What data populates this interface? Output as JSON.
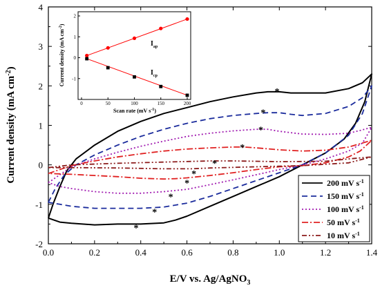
{
  "chart_data": {
    "type": "line",
    "xlabel_main": "E/V vs. Ag/AgNO",
    "xlabel_sub": "3",
    "ylabel_main": "Current density (mA cm",
    "ylabel_sup": "-2",
    "ylabel_end": ")",
    "xlim": [
      0.0,
      1.4
    ],
    "ylim": [
      -2,
      4
    ],
    "x_ticks": [
      "0.0",
      "0.2",
      "0.4",
      "0.6",
      "0.8",
      "1.0",
      "1.2",
      "1.4"
    ],
    "y_ticks": [
      "-2",
      "-1",
      "0",
      "1",
      "2",
      "3",
      "4"
    ],
    "legend_placement": "bottom-right",
    "series": [
      {
        "name": "200 mV s",
        "name_sup": "-1",
        "color": "#000000",
        "dash": "solid",
        "upper": [
          [
            0.0,
            -1.35
          ],
          [
            0.02,
            -1.0
          ],
          [
            0.05,
            -0.55
          ],
          [
            0.08,
            -0.15
          ],
          [
            0.12,
            0.15
          ],
          [
            0.2,
            0.5
          ],
          [
            0.3,
            0.85
          ],
          [
            0.4,
            1.1
          ],
          [
            0.5,
            1.3
          ],
          [
            0.6,
            1.45
          ],
          [
            0.7,
            1.6
          ],
          [
            0.8,
            1.72
          ],
          [
            0.9,
            1.82
          ],
          [
            0.95,
            1.85
          ],
          [
            1.0,
            1.85
          ],
          [
            1.05,
            1.82
          ],
          [
            1.1,
            1.82
          ],
          [
            1.2,
            1.82
          ],
          [
            1.3,
            1.93
          ],
          [
            1.36,
            2.08
          ],
          [
            1.4,
            2.3
          ]
        ],
        "lower": [
          [
            1.4,
            2.3
          ],
          [
            1.37,
            1.6
          ],
          [
            1.33,
            1.05
          ],
          [
            1.28,
            0.65
          ],
          [
            1.2,
            0.3
          ],
          [
            1.1,
            0.0
          ],
          [
            1.0,
            -0.3
          ],
          [
            0.9,
            -0.55
          ],
          [
            0.8,
            -0.8
          ],
          [
            0.7,
            -1.05
          ],
          [
            0.6,
            -1.3
          ],
          [
            0.55,
            -1.4
          ],
          [
            0.5,
            -1.47
          ],
          [
            0.4,
            -1.5
          ],
          [
            0.3,
            -1.5
          ],
          [
            0.2,
            -1.52
          ],
          [
            0.1,
            -1.48
          ],
          [
            0.05,
            -1.45
          ],
          [
            0.0,
            -1.35
          ]
        ]
      },
      {
        "name": "150 mV s",
        "name_sup": "-1",
        "color": "#1a2b9c",
        "dash": "8 5",
        "upper": [
          [
            0.0,
            -0.95
          ],
          [
            0.03,
            -0.6
          ],
          [
            0.07,
            -0.25
          ],
          [
            0.12,
            0.0
          ],
          [
            0.2,
            0.25
          ],
          [
            0.3,
            0.5
          ],
          [
            0.4,
            0.72
          ],
          [
            0.5,
            0.9
          ],
          [
            0.6,
            1.05
          ],
          [
            0.7,
            1.17
          ],
          [
            0.8,
            1.25
          ],
          [
            0.9,
            1.3
          ],
          [
            0.95,
            1.32
          ],
          [
            1.0,
            1.32
          ],
          [
            1.05,
            1.28
          ],
          [
            1.1,
            1.25
          ],
          [
            1.2,
            1.3
          ],
          [
            1.3,
            1.48
          ],
          [
            1.36,
            1.7
          ],
          [
            1.4,
            2.0
          ]
        ],
        "lower": [
          [
            1.4,
            2.0
          ],
          [
            1.36,
            1.3
          ],
          [
            1.3,
            0.75
          ],
          [
            1.2,
            0.3
          ],
          [
            1.1,
            0.0
          ],
          [
            1.0,
            -0.2
          ],
          [
            0.9,
            -0.4
          ],
          [
            0.8,
            -0.6
          ],
          [
            0.7,
            -0.8
          ],
          [
            0.6,
            -0.97
          ],
          [
            0.5,
            -1.07
          ],
          [
            0.4,
            -1.1
          ],
          [
            0.3,
            -1.1
          ],
          [
            0.2,
            -1.1
          ],
          [
            0.1,
            -1.05
          ],
          [
            0.05,
            -1.0
          ],
          [
            0.0,
            -0.95
          ]
        ]
      },
      {
        "name": "100 mV s",
        "name_sup": "-1",
        "color": "#a01ab0",
        "dash": "2 3",
        "upper": [
          [
            0.0,
            -0.45
          ],
          [
            0.05,
            -0.25
          ],
          [
            0.1,
            -0.05
          ],
          [
            0.2,
            0.15
          ],
          [
            0.3,
            0.32
          ],
          [
            0.4,
            0.47
          ],
          [
            0.5,
            0.6
          ],
          [
            0.6,
            0.72
          ],
          [
            0.7,
            0.8
          ],
          [
            0.8,
            0.86
          ],
          [
            0.9,
            0.9
          ],
          [
            0.95,
            0.9
          ],
          [
            1.0,
            0.85
          ],
          [
            1.1,
            0.78
          ],
          [
            1.2,
            0.77
          ],
          [
            1.3,
            0.8
          ],
          [
            1.35,
            0.87
          ],
          [
            1.4,
            0.95
          ]
        ],
        "lower": [
          [
            1.4,
            0.95
          ],
          [
            1.36,
            0.55
          ],
          [
            1.3,
            0.35
          ],
          [
            1.2,
            0.15
          ],
          [
            1.1,
            0.0
          ],
          [
            1.0,
            -0.12
          ],
          [
            0.9,
            -0.25
          ],
          [
            0.8,
            -0.38
          ],
          [
            0.7,
            -0.5
          ],
          [
            0.6,
            -0.62
          ],
          [
            0.5,
            -0.68
          ],
          [
            0.4,
            -0.72
          ],
          [
            0.3,
            -0.72
          ],
          [
            0.2,
            -0.68
          ],
          [
            0.1,
            -0.6
          ],
          [
            0.05,
            -0.55
          ],
          [
            0.0,
            -0.45
          ]
        ]
      },
      {
        "name": "50 mV s",
        "name_sup": "-1",
        "color": "#e02020",
        "dash": "9 3 2 3",
        "upper": [
          [
            0.0,
            -0.22
          ],
          [
            0.1,
            -0.02
          ],
          [
            0.2,
            0.1
          ],
          [
            0.3,
            0.2
          ],
          [
            0.4,
            0.28
          ],
          [
            0.5,
            0.35
          ],
          [
            0.6,
            0.4
          ],
          [
            0.7,
            0.43
          ],
          [
            0.8,
            0.45
          ],
          [
            0.85,
            0.45
          ],
          [
            0.9,
            0.43
          ],
          [
            1.0,
            0.38
          ],
          [
            1.1,
            0.35
          ],
          [
            1.2,
            0.37
          ],
          [
            1.3,
            0.45
          ],
          [
            1.4,
            0.62
          ]
        ],
        "lower": [
          [
            1.4,
            0.62
          ],
          [
            1.35,
            0.35
          ],
          [
            1.3,
            0.2
          ],
          [
            1.2,
            0.05
          ],
          [
            1.1,
            -0.02
          ],
          [
            1.0,
            -0.05
          ],
          [
            0.9,
            -0.12
          ],
          [
            0.8,
            -0.2
          ],
          [
            0.7,
            -0.27
          ],
          [
            0.6,
            -0.33
          ],
          [
            0.55,
            -0.35
          ],
          [
            0.5,
            -0.36
          ],
          [
            0.4,
            -0.34
          ],
          [
            0.3,
            -0.3
          ],
          [
            0.2,
            -0.27
          ],
          [
            0.1,
            -0.24
          ],
          [
            0.0,
            -0.22
          ]
        ]
      },
      {
        "name": "10 mV s",
        "name_sup": "-1",
        "color": "#8b1a1a",
        "dash": "7 3 2 3 2 3",
        "upper": [
          [
            0.0,
            -0.07
          ],
          [
            0.1,
            0.0
          ],
          [
            0.3,
            0.04
          ],
          [
            0.5,
            0.07
          ],
          [
            0.7,
            0.1
          ],
          [
            0.8,
            0.1
          ],
          [
            0.9,
            0.09
          ],
          [
            1.0,
            0.08
          ],
          [
            1.2,
            0.09
          ],
          [
            1.3,
            0.15
          ],
          [
            1.4,
            0.2
          ]
        ],
        "lower": [
          [
            1.4,
            0.2
          ],
          [
            1.3,
            0.05
          ],
          [
            1.1,
            -0.02
          ],
          [
            0.9,
            -0.05
          ],
          [
            0.7,
            -0.08
          ],
          [
            0.62,
            -0.1
          ],
          [
            0.5,
            -0.1
          ],
          [
            0.3,
            -0.08
          ],
          [
            0.1,
            -0.07
          ],
          [
            0.0,
            -0.07
          ]
        ]
      }
    ],
    "star_markers": [
      [
        0.99,
        1.9
      ],
      [
        0.93,
        1.37
      ],
      [
        0.92,
        0.93
      ],
      [
        0.84,
        0.48
      ],
      [
        0.72,
        0.08
      ],
      [
        0.63,
        -0.18
      ],
      [
        0.6,
        -0.42
      ],
      [
        0.53,
        -0.77
      ],
      [
        0.46,
        -1.15
      ],
      [
        0.38,
        -1.55
      ]
    ],
    "star_symbol": "*",
    "inset": {
      "type": "scatter-line",
      "xlabel": "Scan rate (mV s",
      "xlabel_sup": "-1",
      "xlabel_end": ")",
      "ylabel_main": "Current density (mA cm",
      "ylabel_sup": "-2",
      "ylabel_end": ")",
      "xlim": [
        0,
        200
      ],
      "ylim": [
        -2.0,
        2.2
      ],
      "x_ticks": [
        "0",
        "50",
        "100",
        "150",
        "200"
      ],
      "y_ticks": [
        "-1",
        "0",
        "1",
        "2"
      ],
      "series": [
        {
          "name": "I",
          "name_sub": "ap",
          "color": "#ff0000",
          "marker": "circle",
          "x": [
            10,
            50,
            100,
            150,
            200
          ],
          "y": [
            0.1,
            0.47,
            0.93,
            1.4,
            1.85
          ]
        },
        {
          "name": "I",
          "name_sub": "cp",
          "color": "#000000",
          "marker": "square",
          "x": [
            10,
            50,
            100,
            150,
            200
          ],
          "y": [
            -0.05,
            -0.48,
            -0.92,
            -1.38,
            -1.8
          ]
        }
      ],
      "fit_color": "#ff0000"
    }
  }
}
